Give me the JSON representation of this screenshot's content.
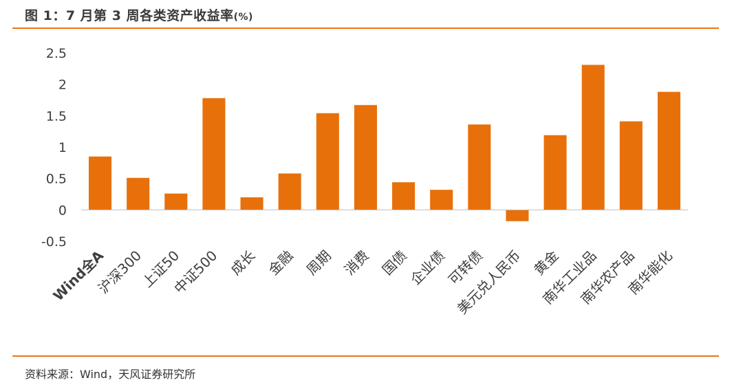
{
  "header": {
    "title": "图 1：7 月第 3 周各类资产收益率",
    "title_unit": "(%)"
  },
  "footer": {
    "source": "资料来源：Wind，天风证券研究所"
  },
  "colors": {
    "bar": "#e8700a",
    "rule": "#e8761a",
    "axis_line": "#bfbfbf"
  },
  "chart_data": {
    "type": "bar",
    "title": "图 1：7 月第 3 周各类资产收益率(%)",
    "xlabel": "",
    "ylabel": "",
    "categories": [
      "Wind全A",
      "沪深300",
      "上证50",
      "中证500",
      "成长",
      "金融",
      "周期",
      "消费",
      "国债",
      "企业债",
      "可转债",
      "美元兑人民币",
      "黄金",
      "南华工业品",
      "南华农产品",
      "南华能化"
    ],
    "values": [
      0.85,
      0.51,
      0.26,
      1.78,
      0.2,
      0.58,
      1.54,
      1.67,
      0.44,
      0.32,
      1.36,
      -0.18,
      1.19,
      2.31,
      1.41,
      1.88
    ],
    "ylim": [
      -0.5,
      2.5
    ],
    "yticks": [
      -0.5,
      0,
      0.5,
      1,
      1.5,
      2,
      2.5
    ],
    "ytick_labels": [
      "-0.5",
      "0",
      "0.5",
      "1",
      "1.5",
      "2",
      "2.5"
    ],
    "grid": false,
    "legend": "none"
  }
}
